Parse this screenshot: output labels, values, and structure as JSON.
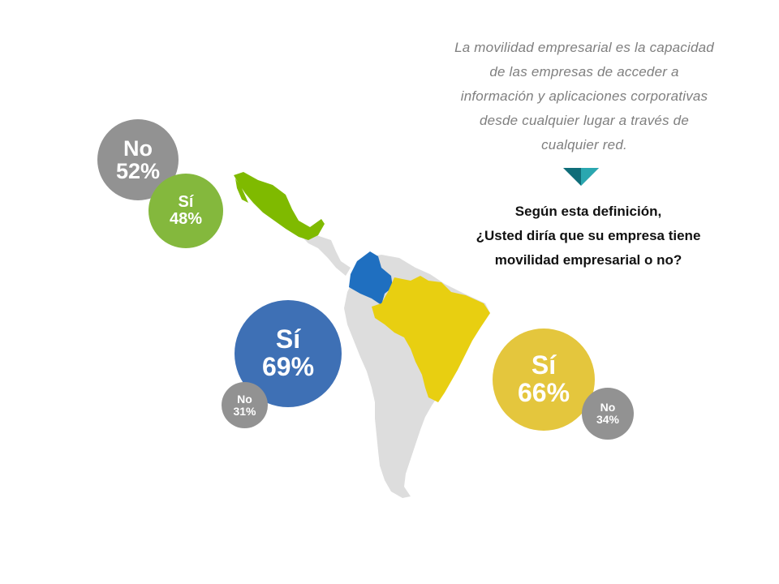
{
  "definition": {
    "lines": [
      "La movilidad empresarial es la capacidad",
      "de las empresas  de acceder a",
      "información y aplicaciones corporativas",
      "desde cualquier lugar a través de",
      "cualquier red."
    ]
  },
  "question": {
    "lines": [
      "Según esta definición,",
      "¿Usted diría que su empresa tiene",
      "movilidad empresarial  o no?"
    ]
  },
  "results": {
    "mexico": {
      "no": {
        "label": "No",
        "value": "52%"
      },
      "si": {
        "label": "Sí",
        "value": "48%"
      }
    },
    "colombia": {
      "si": {
        "label": "Sí",
        "value": "69%"
      },
      "no": {
        "label": "No",
        "value": "31%"
      }
    },
    "brazil": {
      "si": {
        "label": "Sí",
        "value": "66%"
      },
      "no": {
        "label": "No",
        "value": "34%"
      }
    }
  },
  "colors": {
    "map_base": "#dddddd",
    "mexico": "#7fba00",
    "colombia": "#1f6fc0",
    "brazil": "#e8cf11",
    "no_bubble": "#929292",
    "arrow_dark": "#0f6d79",
    "arrow_light": "#2aa7b0"
  }
}
